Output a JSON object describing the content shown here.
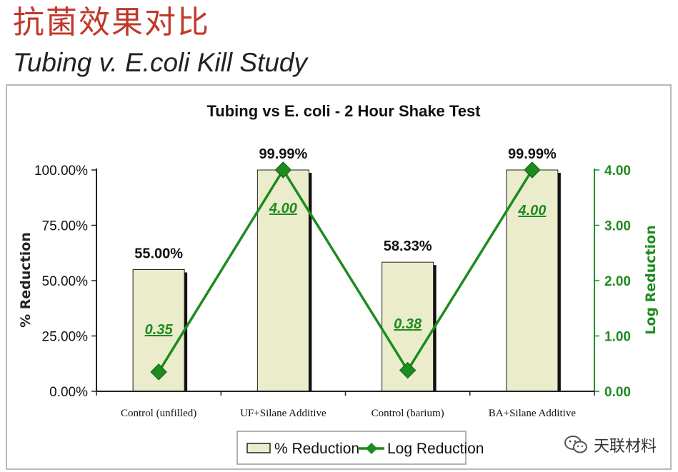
{
  "slide": {
    "heading_cn": "抗菌效果对比",
    "heading_en": "Tubing v. E.coli Kill Study"
  },
  "watermark": {
    "text": "天联材料",
    "icon": "wechat-icon"
  },
  "chart_data": {
    "type": "bar",
    "title": "Tubing vs E. coli - 2 Hour Shake Test",
    "categories": [
      "Control (unfilled)",
      "UF+Silane Additive",
      "Control (barium)",
      "BA+Silane Additive"
    ],
    "series": [
      {
        "name": "% Reduction",
        "type": "bar",
        "axis": "left",
        "values": [
          55.0,
          99.99,
          58.33,
          99.99
        ],
        "labels": [
          "55.00%",
          "99.99%",
          "58.33%",
          "99.99%"
        ],
        "color": "#ebeccc"
      },
      {
        "name": "Log Reduction",
        "type": "line",
        "axis": "right",
        "values": [
          0.35,
          4.0,
          0.38,
          4.0
        ],
        "labels": [
          "0.35",
          "4.00",
          "0.38",
          "4.00"
        ],
        "color": "#1e8b1e"
      }
    ],
    "ylabel": "% Reduction",
    "y2label": "Log Reduction",
    "ylim": [
      0,
      100
    ],
    "y2lim": [
      0,
      4
    ],
    "yticks": [
      "0.00%",
      "25.00%",
      "50.00%",
      "75.00%",
      "100.00%"
    ],
    "y2ticks": [
      "0.00",
      "1.00",
      "2.00",
      "3.00",
      "4.00"
    ],
    "legend_position": "bottom"
  }
}
